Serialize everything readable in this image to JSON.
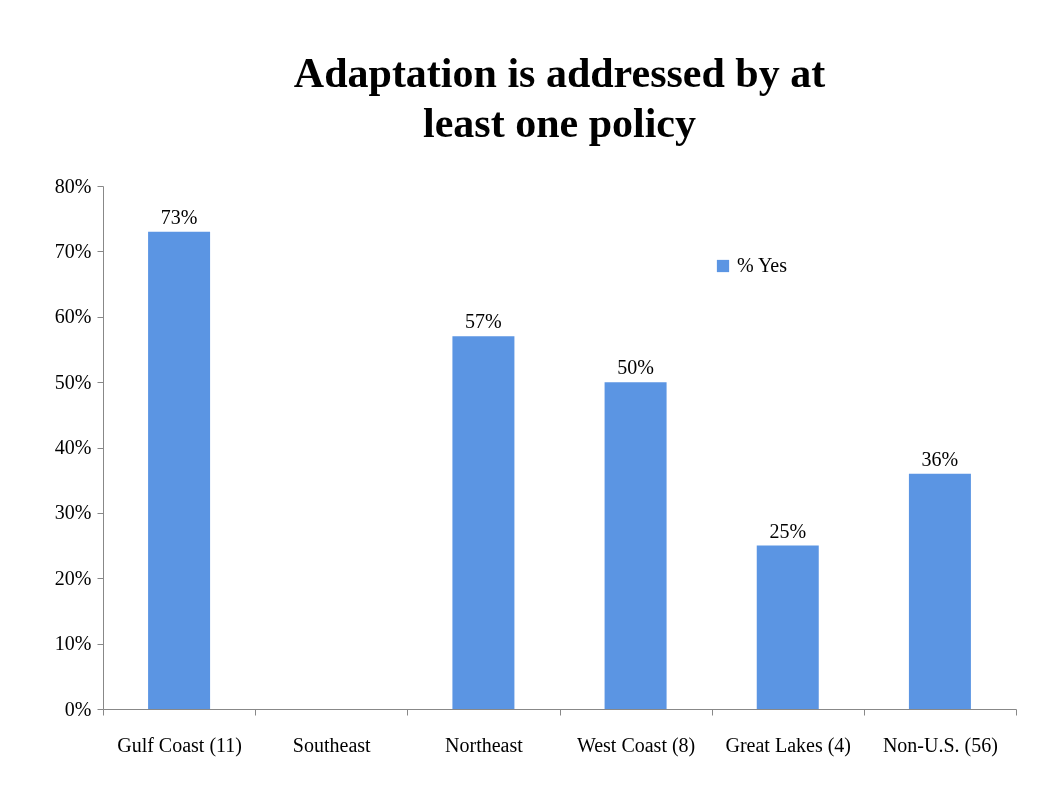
{
  "chart_data": {
    "type": "bar",
    "title": "Adaptation is addressed by at least one policy",
    "categories": [
      "Gulf Coast (11)",
      "Southeast",
      "Northeast",
      "West Coast (8)",
      "Great Lakes (4)",
      "Non-U.S. (56)"
    ],
    "series": [
      {
        "name": "% Yes",
        "color": "#5b95e3",
        "values": [
          73,
          null,
          57,
          50,
          25,
          36
        ],
        "value_labels": [
          "73%",
          null,
          "57%",
          "50%",
          "25%",
          "36%"
        ]
      }
    ],
    "ylim": [
      0,
      80
    ],
    "yticks": [
      {
        "value": 0,
        "label": "0%"
      },
      {
        "value": 10,
        "label": "10%"
      },
      {
        "value": 20,
        "label": "20%"
      },
      {
        "value": 30,
        "label": "30%"
      },
      {
        "value": 40,
        "label": "40%"
      },
      {
        "value": 50,
        "label": "50%"
      },
      {
        "value": 60,
        "label": "60%"
      },
      {
        "value": 70,
        "label": "70%"
      },
      {
        "value": 80,
        "label": "80%"
      }
    ],
    "grid": false,
    "legend": "top right"
  }
}
